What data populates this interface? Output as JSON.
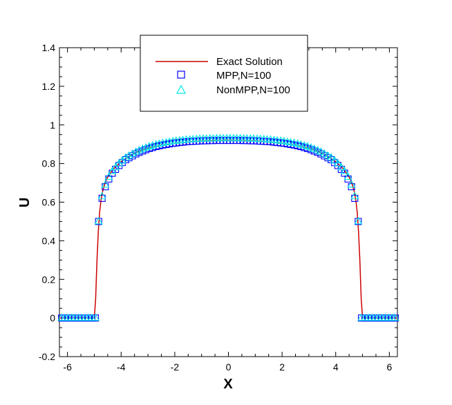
{
  "chart_data": {
    "type": "line",
    "title": "",
    "xlabel": "X",
    "ylabel": "U",
    "xlim": [
      -6.3,
      6.3
    ],
    "ylim": [
      -0.2,
      1.4
    ],
    "xticks": [
      -6,
      -4,
      -2,
      0,
      2,
      4,
      6
    ],
    "xtick_labels": [
      "-6",
      "-4",
      "-2",
      "0",
      "2",
      "4",
      "6"
    ],
    "yticks": [
      -0.2,
      0,
      0.2,
      0.4,
      0.6,
      0.8,
      1,
      1.2,
      1.4
    ],
    "ytick_labels": [
      "-0.2",
      "0",
      "0.2",
      "0.4",
      "0.6",
      "0.8",
      "1",
      "1.2",
      "1.4"
    ],
    "grid": false,
    "legend_position": "top-center",
    "series": [
      {
        "name": "Exact Solution",
        "style": "line",
        "color": "#cc0000",
        "x": [
          -6.3,
          -5.0,
          -4.95,
          -4.9,
          -4.85,
          -4.8,
          -4.75,
          -4.7,
          -4.6,
          -4.5,
          -4.3,
          -4.0,
          -3.5,
          -3.0,
          -2.5,
          -2.0,
          -1.5,
          -1.0,
          -0.5,
          0.0,
          0.5,
          1.0,
          1.5,
          2.0,
          2.5,
          3.0,
          3.5,
          4.0,
          4.3,
          4.5,
          4.6,
          4.7,
          4.75,
          4.8,
          4.85,
          4.9,
          4.95,
          5.0,
          6.3
        ],
        "y": [
          0,
          0,
          0.1,
          0.3,
          0.45,
          0.55,
          0.61,
          0.65,
          0.7,
          0.73,
          0.77,
          0.81,
          0.855,
          0.88,
          0.895,
          0.905,
          0.912,
          0.917,
          0.919,
          0.92,
          0.919,
          0.917,
          0.912,
          0.905,
          0.895,
          0.88,
          0.855,
          0.81,
          0.77,
          0.73,
          0.7,
          0.65,
          0.61,
          0.55,
          0.45,
          0.3,
          0.1,
          0,
          0
        ]
      },
      {
        "name": "MPP,N=100",
        "style": "marker-square",
        "color": "#0000ff",
        "x": [
          -6.22,
          -6.1,
          -5.97,
          -5.84,
          -5.72,
          -5.59,
          -5.47,
          -5.34,
          -5.22,
          -5.09,
          -4.96,
          -4.84,
          -4.71,
          -4.59,
          -4.46,
          -4.33,
          -4.21,
          -4.08,
          -3.96,
          -3.83,
          -3.71,
          -3.58,
          -3.45,
          -3.33,
          -3.2,
          -3.08,
          -2.95,
          -2.83,
          -2.7,
          -2.58,
          -2.45,
          -2.32,
          -2.2,
          -2.07,
          -1.95,
          -1.82,
          -1.7,
          -1.57,
          -1.44,
          -1.32,
          -1.19,
          -1.07,
          -0.94,
          -0.82,
          -0.69,
          -0.57,
          -0.44,
          -0.31,
          -0.19,
          -0.06,
          0.06,
          0.19,
          0.31,
          0.44,
          0.57,
          0.69,
          0.82,
          0.94,
          1.07,
          1.19,
          1.32,
          1.44,
          1.57,
          1.7,
          1.82,
          1.95,
          2.07,
          2.2,
          2.32,
          2.45,
          2.58,
          2.7,
          2.83,
          2.95,
          3.08,
          3.2,
          3.33,
          3.45,
          3.58,
          3.71,
          3.83,
          3.96,
          4.08,
          4.21,
          4.33,
          4.46,
          4.59,
          4.71,
          4.84,
          4.96,
          5.09,
          5.22,
          5.34,
          5.47,
          5.59,
          5.72,
          5.84,
          5.97,
          6.1,
          6.22
        ],
        "y": [
          0,
          0,
          0,
          0,
          0,
          0,
          0,
          0,
          0,
          0,
          0,
          0.5,
          0.62,
          0.68,
          0.72,
          0.75,
          0.77,
          0.79,
          0.805,
          0.82,
          0.83,
          0.84,
          0.85,
          0.858,
          0.865,
          0.872,
          0.878,
          0.883,
          0.888,
          0.892,
          0.896,
          0.899,
          0.902,
          0.905,
          0.907,
          0.909,
          0.911,
          0.913,
          0.914,
          0.915,
          0.916,
          0.917,
          0.918,
          0.918,
          0.919,
          0.919,
          0.92,
          0.92,
          0.92,
          0.92,
          0.92,
          0.92,
          0.92,
          0.92,
          0.919,
          0.919,
          0.918,
          0.918,
          0.917,
          0.916,
          0.915,
          0.914,
          0.913,
          0.911,
          0.909,
          0.907,
          0.905,
          0.902,
          0.899,
          0.896,
          0.892,
          0.888,
          0.883,
          0.878,
          0.872,
          0.865,
          0.858,
          0.85,
          0.84,
          0.83,
          0.82,
          0.805,
          0.79,
          0.77,
          0.75,
          0.72,
          0.68,
          0.62,
          0.5,
          0,
          0,
          0,
          0,
          0,
          0,
          0,
          0,
          0,
          0,
          0
        ]
      },
      {
        "name": "NonMPP,N=100",
        "style": "marker-triangle",
        "color": "#00e5e5",
        "x": [
          -6.22,
          -6.1,
          -5.97,
          -5.84,
          -5.72,
          -5.59,
          -5.47,
          -5.34,
          -5.22,
          -5.09,
          -4.96,
          -4.84,
          -4.71,
          -4.59,
          -4.46,
          -4.33,
          -4.21,
          -4.08,
          -3.96,
          -3.83,
          -3.71,
          -3.58,
          -3.45,
          -3.33,
          -3.2,
          -3.08,
          -2.95,
          -2.83,
          -2.7,
          -2.58,
          -2.45,
          -2.32,
          -2.2,
          -2.07,
          -1.95,
          -1.82,
          -1.7,
          -1.57,
          -1.44,
          -1.32,
          -1.19,
          -1.07,
          -0.94,
          -0.82,
          -0.69,
          -0.57,
          -0.44,
          -0.31,
          -0.19,
          -0.06,
          0.06,
          0.19,
          0.31,
          0.44,
          0.57,
          0.69,
          0.82,
          0.94,
          1.07,
          1.19,
          1.32,
          1.44,
          1.57,
          1.7,
          1.82,
          1.95,
          2.07,
          2.2,
          2.32,
          2.45,
          2.58,
          2.7,
          2.83,
          2.95,
          3.08,
          3.2,
          3.33,
          3.45,
          3.58,
          3.71,
          3.83,
          3.96,
          4.08,
          4.21,
          4.33,
          4.46,
          4.59,
          4.71,
          4.84,
          4.96,
          5.09,
          5.22,
          5.34,
          5.47,
          5.59,
          5.72,
          5.84,
          5.97,
          6.1,
          6.22
        ],
        "y": [
          0,
          0,
          0,
          0,
          0,
          0,
          0,
          0,
          0,
          0,
          0,
          0.5,
          0.63,
          0.69,
          0.73,
          0.76,
          0.78,
          0.8,
          0.815,
          0.83,
          0.84,
          0.85,
          0.86,
          0.868,
          0.875,
          0.882,
          0.888,
          0.893,
          0.898,
          0.902,
          0.906,
          0.909,
          0.912,
          0.915,
          0.917,
          0.919,
          0.921,
          0.923,
          0.924,
          0.925,
          0.926,
          0.927,
          0.928,
          0.928,
          0.929,
          0.929,
          0.93,
          0.93,
          0.93,
          0.93,
          0.93,
          0.93,
          0.93,
          0.93,
          0.929,
          0.929,
          0.928,
          0.928,
          0.927,
          0.926,
          0.925,
          0.924,
          0.923,
          0.921,
          0.919,
          0.917,
          0.915,
          0.912,
          0.909,
          0.906,
          0.902,
          0.898,
          0.893,
          0.888,
          0.882,
          0.875,
          0.868,
          0.86,
          0.85,
          0.84,
          0.83,
          0.815,
          0.8,
          0.78,
          0.76,
          0.73,
          0.69,
          0.63,
          0.5,
          0,
          0,
          0,
          0,
          0,
          0,
          0,
          0,
          0,
          0,
          0
        ]
      }
    ]
  }
}
